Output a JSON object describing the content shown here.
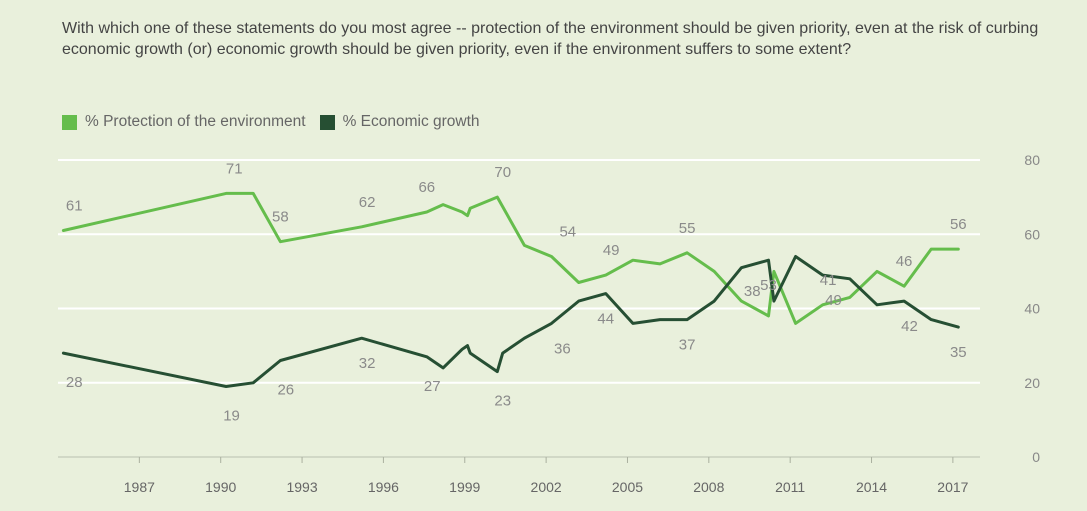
{
  "chart_data": {
    "type": "line",
    "title": "With which one of these statements do you most agree -- protection of the environment should be given priority, even at the risk of curbing economic growth (or) economic growth should be given priority, even if the environment suffers to some extent?",
    "xlabel": "",
    "ylabel": "",
    "xlim": [
      1984,
      2018
    ],
    "ylim": [
      0,
      80
    ],
    "yticks": [
      0,
      20,
      40,
      60,
      80
    ],
    "xticks": [
      1987,
      1990,
      1993,
      1996,
      1999,
      2002,
      2005,
      2008,
      2011,
      2014,
      2017
    ],
    "legend_position": "top-left",
    "grid": true,
    "series": [
      {
        "name": "% Protection of the environment",
        "color": "#65bd4c",
        "points": [
          [
            1984.2,
            61
          ],
          [
            1990.2,
            71
          ],
          [
            1991.2,
            71
          ],
          [
            1992.2,
            58
          ],
          [
            1995.2,
            62
          ],
          [
            1997.6,
            66
          ],
          [
            1998.2,
            68
          ],
          [
            1998.9,
            66
          ],
          [
            1999.1,
            65
          ],
          [
            1999.2,
            67
          ],
          [
            2000.2,
            70
          ],
          [
            2001.2,
            57
          ],
          [
            2002.2,
            54
          ],
          [
            2003.2,
            47
          ],
          [
            2004.2,
            49
          ],
          [
            2005.2,
            53
          ],
          [
            2006.2,
            52
          ],
          [
            2007.2,
            55
          ],
          [
            2008.2,
            50
          ],
          [
            2009.2,
            42
          ],
          [
            2010.2,
            38
          ],
          [
            2010.4,
            50
          ],
          [
            2011.2,
            36
          ],
          [
            2012.2,
            41
          ],
          [
            2013.2,
            43
          ],
          [
            2014.2,
            50
          ],
          [
            2015.2,
            46
          ],
          [
            2016.2,
            56
          ],
          [
            2017.2,
            56
          ]
        ]
      },
      {
        "name": "% Economic growth",
        "color": "#264f33",
        "points": [
          [
            1984.2,
            28
          ],
          [
            1990.2,
            19
          ],
          [
            1991.2,
            20
          ],
          [
            1992.2,
            26
          ],
          [
            1995.2,
            32
          ],
          [
            1997.6,
            27
          ],
          [
            1998.2,
            24
          ],
          [
            1998.9,
            29
          ],
          [
            1999.1,
            30
          ],
          [
            1999.2,
            28
          ],
          [
            2000.2,
            23
          ],
          [
            2000.4,
            28
          ],
          [
            2001.2,
            32
          ],
          [
            2002.2,
            36
          ],
          [
            2003.2,
            42
          ],
          [
            2004.2,
            44
          ],
          [
            2005.2,
            36
          ],
          [
            2006.2,
            37
          ],
          [
            2007.2,
            37
          ],
          [
            2008.2,
            42
          ],
          [
            2009.2,
            51
          ],
          [
            2010.2,
            53
          ],
          [
            2010.4,
            42
          ],
          [
            2011.2,
            54
          ],
          [
            2012.2,
            49
          ],
          [
            2013.2,
            48
          ],
          [
            2014.2,
            41
          ],
          [
            2015.2,
            42
          ],
          [
            2016.2,
            37
          ],
          [
            2017.2,
            35
          ]
        ]
      }
    ],
    "labels": [
      {
        "series": 0,
        "x": 1984.6,
        "y": 61,
        "text": "61"
      },
      {
        "series": 0,
        "x": 1990.5,
        "y": 71,
        "text": "71"
      },
      {
        "series": 0,
        "x": 1992.2,
        "y": 58,
        "text": "58"
      },
      {
        "series": 0,
        "x": 1995.4,
        "y": 62,
        "text": "62"
      },
      {
        "series": 0,
        "x": 1997.6,
        "y": 66,
        "text": "66"
      },
      {
        "series": 0,
        "x": 2000.4,
        "y": 70,
        "text": "70"
      },
      {
        "series": 0,
        "x": 2002.8,
        "y": 54,
        "text": "54"
      },
      {
        "series": 0,
        "x": 2004.4,
        "y": 49,
        "text": "49"
      },
      {
        "series": 0,
        "x": 2007.2,
        "y": 55,
        "text": "55"
      },
      {
        "series": 0,
        "x": 2009.6,
        "y": 38,
        "text": "38"
      },
      {
        "series": 0,
        "x": 2012.4,
        "y": 41,
        "text": "41"
      },
      {
        "series": 0,
        "x": 2015.2,
        "y": 46,
        "text": "46"
      },
      {
        "series": 0,
        "x": 2017.2,
        "y": 56,
        "text": "56"
      },
      {
        "series": 1,
        "x": 1984.6,
        "y": 28,
        "text": "28"
      },
      {
        "series": 1,
        "x": 1990.4,
        "y": 19,
        "text": "19"
      },
      {
        "series": 1,
        "x": 1992.4,
        "y": 26,
        "text": "26"
      },
      {
        "series": 1,
        "x": 1995.4,
        "y": 32,
        "text": "32"
      },
      {
        "series": 1,
        "x": 1997.8,
        "y": 27,
        "text": "27"
      },
      {
        "series": 1,
        "x": 2000.4,
        "y": 23,
        "text": "23"
      },
      {
        "series": 1,
        "x": 2002.6,
        "y": 36,
        "text": "36"
      },
      {
        "series": 1,
        "x": 2004.2,
        "y": 44,
        "text": "44"
      },
      {
        "series": 1,
        "x": 2007.2,
        "y": 37,
        "text": "37"
      },
      {
        "series": 1,
        "x": 2010.2,
        "y": 53,
        "text": "53"
      },
      {
        "series": 1,
        "x": 2012.6,
        "y": 49,
        "text": "49"
      },
      {
        "series": 1,
        "x": 2015.4,
        "y": 42,
        "text": "42"
      },
      {
        "series": 1,
        "x": 2017.2,
        "y": 35,
        "text": "35"
      }
    ]
  }
}
